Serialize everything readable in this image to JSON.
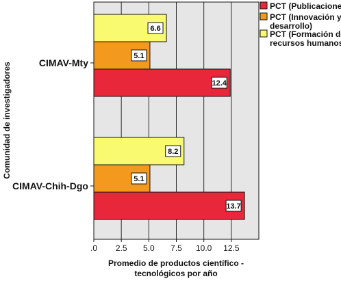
{
  "chart_data": {
    "type": "bar",
    "orientation": "horizontal",
    "categories": [
      "CIMAV-Mty",
      "CIMAV-Chih-Dgo"
    ],
    "series": [
      {
        "name": "PCT (Publicaciones)",
        "color": "#e8283a",
        "values": [
          12.4,
          13.7
        ]
      },
      {
        "name": "PCT (Innovación y desarrollo)",
        "color": "#f39a1e",
        "values": [
          5.1,
          5.1
        ]
      },
      {
        "name": "PCT (Formación de recursos humanos)",
        "color": "#fafa70",
        "values": [
          6.6,
          8.2
        ]
      }
    ],
    "value_labels": [
      [
        "12.4",
        "13.7"
      ],
      [
        "5.1",
        "5.1"
      ],
      [
        "6.6",
        "8.2"
      ]
    ],
    "xlabel": "Promedio de productos científico - tecnológicos por año",
    "ylabel": "Comunidad de investigadores",
    "xlim": [
      0,
      15
    ],
    "xticks": [
      ".0",
      "2.5",
      "5.0",
      "7.5",
      "10.0",
      "12.5"
    ],
    "grid": true,
    "legend_position": "top-right",
    "background": "#e6e6e6"
  }
}
